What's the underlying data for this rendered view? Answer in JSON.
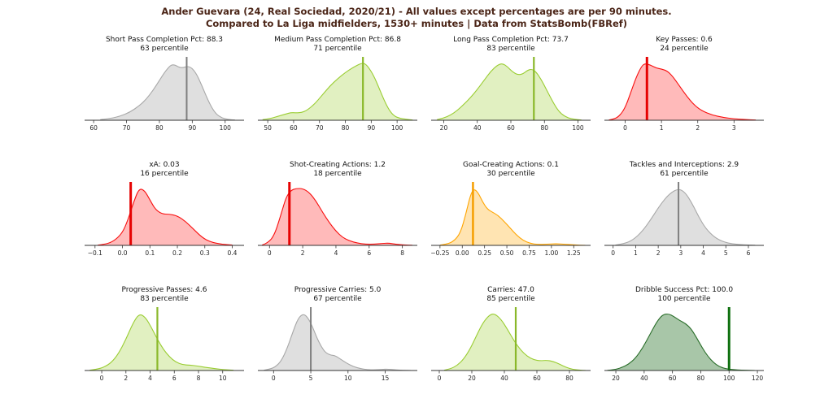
{
  "figure_title": {
    "line1": "Ander Guevara (24, Real Sociedad, 2020/21) - All values except percentages are per 90 minutes.",
    "line2": "Compared to La Liga midfielders, 1530+ minutes | Data from StatsBomb(FBRef)",
    "color": "#4b2517"
  },
  "palettes": {
    "gray": {
      "stroke": "#a8a8a8",
      "fill": "rgba(128,128,128,0.25)",
      "marker": "#7f7f7f",
      "marker_width": 2
    },
    "green": {
      "stroke": "#9acd32",
      "fill": "rgba(154,205,50,0.30)",
      "marker": "#8ab82a",
      "marker_width": 2.2
    },
    "red": {
      "stroke": "#f80f0f",
      "fill": "rgba(255,0,0,0.27)",
      "marker": "#e60202",
      "marker_width": 3
    },
    "orange": {
      "stroke": "#ffa500",
      "fill": "rgba(255,165,0,0.30)",
      "marker": "#f59e00",
      "marker_width": 2.5
    },
    "darkgreen": {
      "stroke": "#2a6e2a",
      "fill": "rgba(27,105,27,0.38)",
      "marker": "#0e6f0e",
      "marker_width": 3
    }
  },
  "axis_style": {
    "line_color": "#333333",
    "tick_color": "#333333",
    "label_color": "#262626"
  },
  "chart_data": [
    {
      "type": "area",
      "label": "Short Pass Completion Pct",
      "title": "Short Pass Completion Pct: 88.3",
      "subtitle": "63 percentile",
      "value": 88.3,
      "percentile": 63,
      "palette": "gray",
      "xlim": [
        57.5,
        105.5
      ],
      "xticks": [
        60,
        70,
        80,
        90,
        100
      ],
      "xtick_labels": [
        "60",
        "70",
        "80",
        "90",
        "100"
      ],
      "marker_x": 88.3,
      "curve_x": [
        62,
        65,
        68,
        71,
        74,
        76,
        78,
        80,
        82,
        84,
        86.5,
        89,
        91,
        93,
        95,
        97,
        99,
        101,
        103
      ],
      "curve_y": [
        0.01,
        0.03,
        0.07,
        0.14,
        0.26,
        0.37,
        0.52,
        0.7,
        0.88,
        1.0,
        0.91,
        0.96,
        0.85,
        0.6,
        0.32,
        0.12,
        0.04,
        0.012,
        0.004
      ]
    },
    {
      "type": "area",
      "label": "Medium Pass Completion Pct",
      "title": "Medium Pass Completion Pct: 86.8",
      "subtitle": "71 percentile",
      "value": 86.8,
      "percentile": 71,
      "palette": "green",
      "xlim": [
        46.5,
        107.5
      ],
      "xticks": [
        50,
        60,
        70,
        80,
        90,
        100
      ],
      "xtick_labels": [
        "50",
        "60",
        "70",
        "80",
        "90",
        "100"
      ],
      "marker_x": 86.8,
      "curve_x": [
        48,
        51,
        54,
        57,
        59,
        61,
        63,
        65,
        68,
        71,
        74,
        77,
        80,
        83,
        86,
        87.5,
        89,
        91,
        93,
        95,
        97,
        99,
        101,
        103,
        106
      ],
      "curve_y": [
        0.01,
        0.03,
        0.07,
        0.11,
        0.135,
        0.13,
        0.135,
        0.17,
        0.28,
        0.44,
        0.6,
        0.73,
        0.84,
        0.93,
        1.0,
        1.0,
        0.93,
        0.78,
        0.57,
        0.35,
        0.17,
        0.07,
        0.035,
        0.02,
        0.005
      ]
    },
    {
      "type": "area",
      "label": "Long Pass Completion Pct",
      "title": "Long Pass Completion Pct: 73.7",
      "subtitle": "83 percentile",
      "value": 73.7,
      "percentile": 83,
      "palette": "green",
      "xlim": [
        13,
        107
      ],
      "xticks": [
        20,
        40,
        60,
        80,
        100
      ],
      "xtick_labels": [
        "20",
        "40",
        "60",
        "80",
        "100"
      ],
      "marker_x": 73.7,
      "curve_x": [
        16,
        20,
        24,
        28,
        32,
        36,
        40,
        44,
        48,
        52,
        55,
        58,
        61,
        64,
        67,
        70,
        72.5,
        75,
        78,
        81,
        84,
        87,
        90,
        94,
        98,
        102
      ],
      "curve_y": [
        0.01,
        0.04,
        0.09,
        0.17,
        0.28,
        0.4,
        0.54,
        0.7,
        0.86,
        0.97,
        1.0,
        0.94,
        0.85,
        0.8,
        0.81,
        0.88,
        0.9,
        0.85,
        0.72,
        0.55,
        0.38,
        0.22,
        0.11,
        0.04,
        0.015,
        0.005
      ]
    },
    {
      "type": "area",
      "label": "Key Passes",
      "title": "Key Passes: 0.6",
      "subtitle": "24 percentile",
      "value": 0.6,
      "percentile": 24,
      "palette": "red",
      "xlim": [
        -0.55,
        3.8
      ],
      "xticks": [
        0,
        1,
        2,
        3
      ],
      "xtick_labels": [
        "0",
        "1",
        "2",
        "3"
      ],
      "marker_x": 0.6,
      "curve_x": [
        -0.45,
        -0.3,
        -0.15,
        0,
        0.15,
        0.3,
        0.45,
        0.55,
        0.7,
        0.85,
        1.0,
        1.15,
        1.3,
        1.5,
        1.7,
        1.9,
        2.1,
        2.4,
        2.7,
        3.0,
        3.3,
        3.6
      ],
      "curve_y": [
        0.005,
        0.02,
        0.08,
        0.22,
        0.48,
        0.75,
        0.95,
        1.0,
        0.97,
        0.92,
        0.9,
        0.87,
        0.78,
        0.6,
        0.42,
        0.27,
        0.17,
        0.09,
        0.05,
        0.025,
        0.012,
        0.004
      ]
    },
    {
      "type": "area",
      "label": "xA",
      "title": "xA: 0.03",
      "subtitle": "16 percentile",
      "value": 0.03,
      "percentile": 16,
      "palette": "red",
      "xlim": [
        -0.135,
        0.44
      ],
      "xticks": [
        -0.1,
        0.0,
        0.1,
        0.2,
        0.3,
        0.4
      ],
      "xtick_labels": [
        "−0.1",
        "0.0",
        "0.1",
        "0.2",
        "0.3",
        "0.4"
      ],
      "marker_x": 0.03,
      "curve_x": [
        -0.09,
        -0.06,
        -0.03,
        0,
        0.02,
        0.04,
        0.06,
        0.08,
        0.1,
        0.12,
        0.145,
        0.17,
        0.2,
        0.23,
        0.26,
        0.29,
        0.32,
        0.36,
        0.4
      ],
      "curve_y": [
        0.005,
        0.02,
        0.08,
        0.22,
        0.45,
        0.75,
        1.0,
        0.97,
        0.8,
        0.63,
        0.55,
        0.55,
        0.52,
        0.42,
        0.28,
        0.14,
        0.06,
        0.02,
        0.006
      ]
    },
    {
      "type": "area",
      "label": "Shot-Creating Actions",
      "title": "Shot-Creating Actions: 1.2",
      "subtitle": "18 percentile",
      "value": 1.2,
      "percentile": 18,
      "palette": "red",
      "xlim": [
        -0.65,
        8.85
      ],
      "xticks": [
        0,
        2,
        4,
        6,
        8
      ],
      "xtick_labels": [
        "0",
        "2",
        "4",
        "6",
        "8"
      ],
      "marker_x": 1.2,
      "curve_x": [
        -0.45,
        -0.1,
        0.3,
        0.7,
        1.0,
        1.3,
        1.6,
        2.0,
        2.4,
        2.8,
        3.2,
        3.6,
        4.0,
        4.4,
        4.8,
        5.3,
        5.8,
        6.3,
        6.8,
        7.2,
        7.6,
        8.1,
        8.6
      ],
      "curve_y": [
        0.005,
        0.04,
        0.18,
        0.55,
        0.85,
        0.97,
        1.0,
        1.0,
        0.93,
        0.78,
        0.58,
        0.4,
        0.25,
        0.14,
        0.08,
        0.04,
        0.02,
        0.02,
        0.035,
        0.04,
        0.02,
        0.007,
        0.002
      ]
    },
    {
      "type": "area",
      "label": "Goal-Creating Actions",
      "title": "Goal-Creating Actions: 0.1",
      "subtitle": "30 percentile",
      "value": 0.1,
      "percentile": 30,
      "palette": "orange",
      "xlim": [
        -0.34,
        1.43
      ],
      "xticks": [
        -0.25,
        0.0,
        0.25,
        0.5,
        0.75,
        1.0,
        1.25
      ],
      "xtick_labels": [
        "−0.25",
        "0.00",
        "0.25",
        "0.50",
        "0.75",
        "1.00",
        "1.25"
      ],
      "marker_x": 0.12,
      "curve_x": [
        -0.25,
        -0.17,
        -0.09,
        -0.02,
        0.04,
        0.09,
        0.13,
        0.18,
        0.23,
        0.28,
        0.33,
        0.4,
        0.47,
        0.54,
        0.61,
        0.68,
        0.76,
        0.85,
        0.95,
        1.05,
        1.15,
        1.27,
        1.38
      ],
      "curve_y": [
        0.005,
        0.02,
        0.08,
        0.22,
        0.55,
        0.88,
        1.0,
        0.92,
        0.76,
        0.64,
        0.59,
        0.53,
        0.42,
        0.3,
        0.18,
        0.09,
        0.035,
        0.015,
        0.02,
        0.03,
        0.02,
        0.006,
        0.001
      ]
    },
    {
      "type": "area",
      "label": "Tackles and Interceptions",
      "title": "Tackles and Interceptions: 2.9",
      "subtitle": "61 percentile",
      "value": 2.9,
      "percentile": 61,
      "palette": "gray",
      "xlim": [
        -0.35,
        6.65
      ],
      "xticks": [
        0,
        1,
        2,
        3,
        4,
        5,
        6
      ],
      "xtick_labels": [
        "0",
        "1",
        "2",
        "3",
        "4",
        "5",
        "6"
      ],
      "marker_x": 2.9,
      "curve_x": [
        0.1,
        0.5,
        0.9,
        1.3,
        1.7,
        2.1,
        2.5,
        2.9,
        3.2,
        3.5,
        3.8,
        4.1,
        4.5,
        4.9,
        5.3,
        5.8,
        6.3
      ],
      "curve_y": [
        0.005,
        0.03,
        0.1,
        0.25,
        0.47,
        0.72,
        0.91,
        1.0,
        0.93,
        0.74,
        0.5,
        0.3,
        0.14,
        0.06,
        0.025,
        0.01,
        0.003
      ]
    },
    {
      "type": "area",
      "label": "Progressive Passes",
      "title": "Progressive Passes: 4.6",
      "subtitle": "83 percentile",
      "value": 4.6,
      "percentile": 83,
      "palette": "green",
      "xlim": [
        -1.35,
        11.7
      ],
      "xticks": [
        0,
        2,
        4,
        6,
        8,
        10
      ],
      "xtick_labels": [
        "0",
        "2",
        "4",
        "6",
        "8",
        "10"
      ],
      "marker_x": 4.6,
      "curve_x": [
        -1.0,
        -0.4,
        0.2,
        0.8,
        1.4,
        2.0,
        2.6,
        3.1,
        3.6,
        4.1,
        4.6,
        5.1,
        5.6,
        6.1,
        6.7,
        7.3,
        7.9,
        8.6,
        9.3,
        10.1,
        10.9
      ],
      "curve_y": [
        0.005,
        0.02,
        0.06,
        0.14,
        0.3,
        0.55,
        0.84,
        1.0,
        0.94,
        0.76,
        0.55,
        0.37,
        0.24,
        0.15,
        0.1,
        0.095,
        0.08,
        0.055,
        0.035,
        0.015,
        0.004
      ]
    },
    {
      "type": "area",
      "label": "Progressive Carries",
      "title": "Progressive Carries: 5.0",
      "subtitle": "67 percentile",
      "value": 5.0,
      "percentile": 67,
      "palette": "gray",
      "xlim": [
        -2.0,
        19.2
      ],
      "xticks": [
        0,
        5,
        10,
        15
      ],
      "xtick_labels": [
        "0",
        "5",
        "10",
        "15"
      ],
      "marker_x": 5.0,
      "curve_x": [
        -1.3,
        -0.6,
        0.2,
        1.0,
        1.8,
        2.6,
        3.3,
        4.0,
        4.6,
        5.2,
        5.8,
        6.4,
        7.0,
        7.7,
        8.3,
        9.0,
        9.8,
        10.7,
        11.6,
        12.6,
        13.6,
        14.6,
        15.3,
        16.2,
        17.3,
        18.4
      ],
      "curve_y": [
        0.005,
        0.02,
        0.06,
        0.16,
        0.38,
        0.68,
        0.92,
        1.0,
        0.93,
        0.78,
        0.58,
        0.42,
        0.31,
        0.27,
        0.26,
        0.2,
        0.13,
        0.07,
        0.035,
        0.015,
        0.01,
        0.02,
        0.025,
        0.012,
        0.004,
        0.001
      ]
    },
    {
      "type": "area",
      "label": "Carries",
      "title": "Carries: 47.0",
      "subtitle": "85 percentile",
      "value": 47.0,
      "percentile": 85,
      "palette": "green",
      "xlim": [
        -4.5,
        92.5
      ],
      "xticks": [
        0,
        20,
        40,
        60,
        80
      ],
      "xtick_labels": [
        "0",
        "20",
        "40",
        "60",
        "80"
      ],
      "marker_x": 47.0,
      "curve_x": [
        3,
        7,
        11,
        15,
        19,
        23,
        27,
        31,
        34,
        38,
        42,
        46,
        50,
        54,
        58,
        62,
        66,
        70,
        74,
        78,
        82,
        86,
        90
      ],
      "curve_y": [
        0.005,
        0.03,
        0.09,
        0.2,
        0.38,
        0.62,
        0.85,
        0.98,
        1.0,
        0.9,
        0.72,
        0.52,
        0.36,
        0.25,
        0.19,
        0.17,
        0.18,
        0.16,
        0.11,
        0.055,
        0.02,
        0.006,
        0.001
      ]
    },
    {
      "type": "area",
      "label": "Dribble Success Pct",
      "title": "Dribble Success Pct: 100.0",
      "subtitle": "100 percentile",
      "value": 100.0,
      "percentile": 100,
      "palette": "darkgreen",
      "xlim": [
        12.5,
        124
      ],
      "xticks": [
        20,
        40,
        60,
        80,
        100,
        120
      ],
      "xtick_labels": [
        "20",
        "40",
        "60",
        "80",
        "100",
        "120"
      ],
      "marker_x": 100.0,
      "curve_x": [
        14,
        19,
        24,
        29,
        34,
        39,
        44,
        49,
        53,
        57,
        61,
        65,
        69,
        73,
        77,
        81,
        85,
        89,
        93,
        97,
        101,
        106,
        112,
        118
      ],
      "curve_y": [
        0.003,
        0.015,
        0.05,
        0.11,
        0.22,
        0.4,
        0.63,
        0.86,
        0.98,
        1.0,
        0.95,
        0.88,
        0.83,
        0.74,
        0.58,
        0.4,
        0.25,
        0.14,
        0.07,
        0.035,
        0.02,
        0.01,
        0.004,
        0.001
      ]
    }
  ]
}
